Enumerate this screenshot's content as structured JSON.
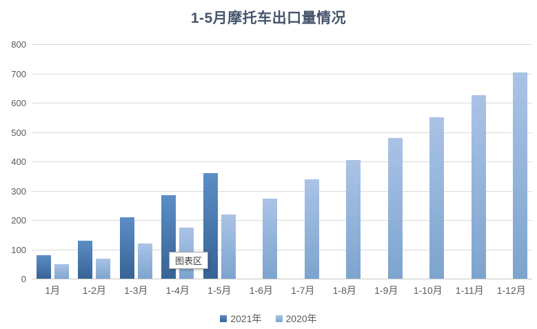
{
  "chart_data": {
    "type": "bar",
    "title": "1-5月摩托车出口量情况",
    "categories": [
      "1月",
      "1-2月",
      "1-3月",
      "1-4月",
      "1-5月",
      "1-6月",
      "1-7月",
      "1-8月",
      "1-9月",
      "1-10月",
      "1-11月",
      "1-12月"
    ],
    "series": [
      {
        "name": "2021年",
        "color_top": "#5b8ec6",
        "color_bottom": "#376295",
        "values": [
          83,
          131,
          211,
          287,
          363,
          null,
          null,
          null,
          null,
          null,
          null,
          null
        ]
      },
      {
        "name": "2020年",
        "color_top": "#aac3e6",
        "color_bottom": "#7ca4ce",
        "values": [
          51,
          71,
          123,
          176,
          222,
          276,
          340,
          408,
          483,
          553,
          628,
          707
        ]
      }
    ],
    "ylim": [
      0,
      800
    ],
    "ytick_step": 100,
    "grid": true,
    "legend_position": "bottom"
  },
  "overlay": {
    "tooltip_label": "图表区"
  },
  "colors": {
    "title": "#44546a",
    "axis_text": "#595959",
    "gridline": "#d9d9d9",
    "background": "#ffffff"
  }
}
